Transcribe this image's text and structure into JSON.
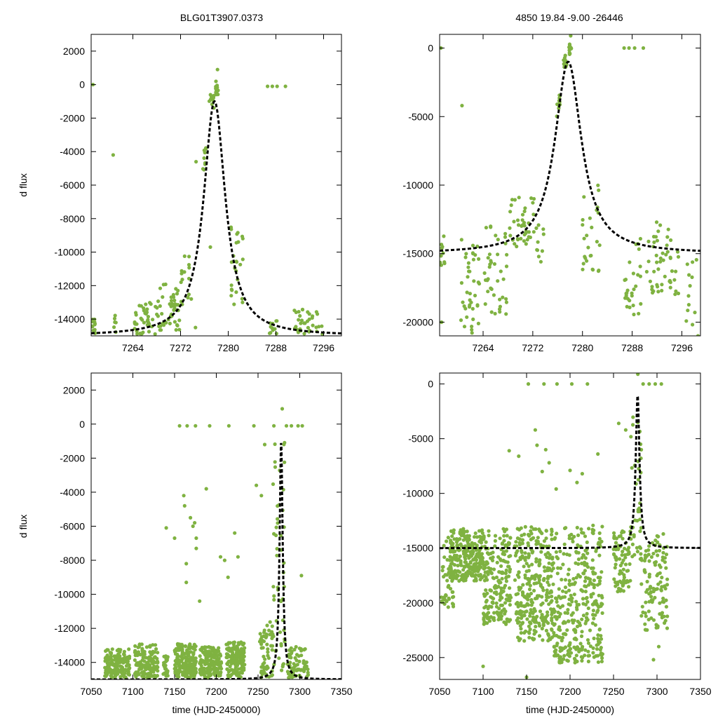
{
  "colors": {
    "points": "#7fb241",
    "model": "#000000",
    "axes": "#000000"
  },
  "header": {
    "left_title": "BLG01T3907.0373",
    "right_title": "4850  19.84  -9.00  -26446"
  },
  "chart_data": [
    {
      "id": "top-left",
      "type": "scatter",
      "xlim": [
        7257,
        7299
      ],
      "ylim": [
        -15000,
        3000
      ],
      "xticks": [
        7264,
        7272,
        7280,
        7288,
        7296
      ],
      "yticks": [
        -14000,
        -12000,
        -10000,
        -8000,
        -6000,
        -4000,
        -2000,
        0,
        2000
      ],
      "ylabel": "d flux",
      "xlabel": "",
      "model": {
        "kind": "lorentzian",
        "t0": 7277.7,
        "width": 2.2,
        "baseline": -15000,
        "peak": -1000
      },
      "points": {
        "clusters": [
          {
            "x0": 7257.0,
            "x1": 7257.8,
            "ymin": -14900,
            "ymax": -13900,
            "n": 12
          },
          {
            "x0": 7260.8,
            "x1": 7261.2,
            "ymin": -14900,
            "ymax": -13400,
            "n": 6
          },
          {
            "x0": 7264.2,
            "x1": 7267.8,
            "ymin": -14900,
            "ymax": -13000,
            "n": 40
          },
          {
            "x0": 7268.0,
            "x1": 7271.8,
            "ymin": -14800,
            "ymax": -11600,
            "n": 50
          },
          {
            "x0": 7272.0,
            "x1": 7273.5,
            "ymin": -13400,
            "ymax": -10200,
            "n": 14
          },
          {
            "x0": 7275.7,
            "x1": 7276.3,
            "ymin": -5200,
            "ymax": -3200,
            "n": 10
          },
          {
            "x0": 7276.8,
            "x1": 7277.6,
            "ymin": -1400,
            "ymax": -600,
            "n": 12
          },
          {
            "x0": 7277.9,
            "x1": 7278.3,
            "ymin": -600,
            "ymax": 200,
            "n": 16
          },
          {
            "x0": 7280.4,
            "x1": 7282.6,
            "ymin": -13200,
            "ymax": -8400,
            "n": 24
          },
          {
            "x0": 7286.8,
            "x1": 7288.2,
            "ymin": -14900,
            "ymax": -13600,
            "n": 12
          },
          {
            "x0": 7291.0,
            "x1": 7295.8,
            "ymin": -14900,
            "ymax": -13000,
            "n": 36
          }
        ],
        "singles": [
          [
            7257.3,
            0
          ],
          [
            7260.7,
            -4200
          ],
          [
            7274.6,
            -4600
          ],
          [
            7278.2,
            900
          ],
          [
            7286.6,
            -100
          ],
          [
            7287.4,
            -100
          ],
          [
            7288.2,
            -100
          ],
          [
            7289.6,
            -100
          ],
          [
            7274.5,
            -14500
          ],
          [
            7273.8,
            -12800
          ],
          [
            7277.0,
            -9700
          ],
          [
            7280.5,
            -12600
          ]
        ]
      }
    },
    {
      "id": "top-right",
      "type": "scatter",
      "xlim": [
        7257,
        7299
      ],
      "ylim": [
        -21000,
        1000
      ],
      "xticks": [
        7264,
        7272,
        7280,
        7288,
        7296
      ],
      "yticks": [
        -20000,
        -15000,
        -10000,
        -5000,
        0
      ],
      "ylabel": "",
      "xlabel": "",
      "model": {
        "kind": "lorentzian",
        "t0": 7277.7,
        "width": 2.6,
        "baseline": -15000,
        "peak": -1000
      },
      "points": {
        "clusters": [
          {
            "x0": 7257.0,
            "x1": 7257.8,
            "ymin": -16000,
            "ymax": -13500,
            "n": 10
          },
          {
            "x0": 7260.4,
            "x1": 7263.8,
            "ymin": -20800,
            "ymax": -13800,
            "n": 40
          },
          {
            "x0": 7264.2,
            "x1": 7267.8,
            "ymin": -19500,
            "ymax": -12500,
            "n": 40
          },
          {
            "x0": 7268.2,
            "x1": 7271.8,
            "ymin": -14500,
            "ymax": -10800,
            "n": 36
          },
          {
            "x0": 7272.0,
            "x1": 7273.8,
            "ymin": -16000,
            "ymax": -9500,
            "n": 14
          },
          {
            "x0": 7275.8,
            "x1": 7276.4,
            "ymin": -5000,
            "ymax": -3000,
            "n": 10
          },
          {
            "x0": 7276.8,
            "x1": 7277.6,
            "ymin": -1400,
            "ymax": -400,
            "n": 12
          },
          {
            "x0": 7277.8,
            "x1": 7278.2,
            "ymin": -500,
            "ymax": 300,
            "n": 14
          },
          {
            "x0": 7280.0,
            "x1": 7282.8,
            "ymin": -16500,
            "ymax": -8500,
            "n": 26
          },
          {
            "x0": 7286.8,
            "x1": 7289.5,
            "ymin": -19500,
            "ymax": -13000,
            "n": 30
          },
          {
            "x0": 7290.0,
            "x1": 7296.0,
            "ymin": -18000,
            "ymax": -12500,
            "n": 50
          },
          {
            "x0": 7296.5,
            "x1": 7298.5,
            "ymin": -20500,
            "ymax": -15000,
            "n": 12
          }
        ],
        "singles": [
          [
            7257.2,
            0
          ],
          [
            7257.3,
            -20000
          ],
          [
            7260.6,
            -4200
          ],
          [
            7278.1,
            900
          ],
          [
            7286.7,
            0
          ],
          [
            7287.5,
            0
          ],
          [
            7288.4,
            0
          ],
          [
            7289.8,
            0
          ],
          [
            7298.6,
            -21000
          ]
        ]
      }
    },
    {
      "id": "bottom-left",
      "type": "scatter",
      "xlim": [
        7050,
        7350
      ],
      "ylim": [
        -15000,
        3000
      ],
      "xticks": [
        7050,
        7100,
        7150,
        7200,
        7250,
        7300,
        7350
      ],
      "yticks": [
        -14000,
        -12000,
        -10000,
        -8000,
        -6000,
        -4000,
        -2000,
        0,
        2000
      ],
      "ylabel": "d flux",
      "xlabel": "time (HJD-2450000)",
      "model": {
        "kind": "lorentzian",
        "t0": 7277.7,
        "width": 2.2,
        "baseline": -15000,
        "peak": -1000
      },
      "points": {
        "clusters": [
          {
            "x0": 7066,
            "x1": 7096,
            "ymin": -14900,
            "ymax": -13100,
            "n": 160
          },
          {
            "x0": 7102,
            "x1": 7130,
            "ymin": -14900,
            "ymax": -12900,
            "n": 150
          },
          {
            "x0": 7136,
            "x1": 7142,
            "ymin": -14800,
            "ymax": -13500,
            "n": 30
          },
          {
            "x0": 7150,
            "x1": 7176,
            "ymin": -14900,
            "ymax": -12900,
            "n": 200
          },
          {
            "x0": 7180,
            "x1": 7206,
            "ymin": -14900,
            "ymax": -13000,
            "n": 160
          },
          {
            "x0": 7212,
            "x1": 7234,
            "ymin": -14900,
            "ymax": -12800,
            "n": 150
          },
          {
            "x0": 7252,
            "x1": 7268,
            "ymin": -14900,
            "ymax": -11500,
            "n": 60
          },
          {
            "x0": 7268,
            "x1": 7282,
            "ymin": -14900,
            "ymax": -1000,
            "n": 50
          },
          {
            "x0": 7285,
            "x1": 7310,
            "ymin": -14900,
            "ymax": -13000,
            "n": 70
          }
        ],
        "singles": [
          [
            7156,
            -100
          ],
          [
            7165,
            -100
          ],
          [
            7175,
            -100
          ],
          [
            7192,
            -100
          ],
          [
            7215,
            -100
          ],
          [
            7245,
            -100
          ],
          [
            7269,
            -100
          ],
          [
            7279,
            900
          ],
          [
            7284,
            -100
          ],
          [
            7290,
            -100
          ],
          [
            7298,
            -100
          ],
          [
            7303,
            -100
          ],
          [
            7140,
            -6100
          ],
          [
            7150,
            -6700
          ],
          [
            7161,
            -4200
          ],
          [
            7162,
            -4800
          ],
          [
            7164,
            -8200
          ],
          [
            7164,
            -9300
          ],
          [
            7169,
            -5500
          ],
          [
            7172,
            -6000
          ],
          [
            7174,
            -5800
          ],
          [
            7176,
            -6700
          ],
          [
            7176,
            -7300
          ],
          [
            7180,
            -10400
          ],
          [
            7188,
            -3800
          ],
          [
            7205,
            -7800
          ],
          [
            7210,
            -8000
          ],
          [
            7214,
            -9000
          ],
          [
            7222,
            -6400
          ],
          [
            7226,
            -7800
          ],
          [
            7248,
            -3600
          ],
          [
            7254,
            -4200
          ],
          [
            7258,
            -1200
          ],
          [
            7302,
            -8900
          ]
        ]
      }
    },
    {
      "id": "bottom-right",
      "type": "scatter",
      "xlim": [
        7050,
        7350
      ],
      "ylim": [
        -27000,
        1000
      ],
      "xticks": [
        7050,
        7100,
        7150,
        7200,
        7250,
        7300,
        7350
      ],
      "yticks": [
        -25000,
        -20000,
        -15000,
        -10000,
        -5000,
        0
      ],
      "ylabel": "",
      "xlabel": "time (HJD-2450000)",
      "model": {
        "kind": "lorentzian",
        "t0": 7277.7,
        "width": 2.6,
        "baseline": -15000,
        "peak": -1000
      },
      "points": {
        "clusters": [
          {
            "x0": 7052,
            "x1": 7066,
            "ymin": -20500,
            "ymax": -14000,
            "n": 50
          },
          {
            "x0": 7062,
            "x1": 7100,
            "ymin": -18000,
            "ymax": -13200,
            "n": 230
          },
          {
            "x0": 7100,
            "x1": 7132,
            "ymin": -22000,
            "ymax": -13000,
            "n": 200
          },
          {
            "x0": 7136,
            "x1": 7180,
            "ymin": -23500,
            "ymax": -13000,
            "n": 300
          },
          {
            "x0": 7180,
            "x1": 7238,
            "ymin": -25500,
            "ymax": -12800,
            "n": 340
          },
          {
            "x0": 7250,
            "x1": 7270,
            "ymin": -19000,
            "ymax": -13300,
            "n": 80
          },
          {
            "x0": 7270,
            "x1": 7282,
            "ymin": -16000,
            "ymax": -3000,
            "n": 40
          },
          {
            "x0": 7282,
            "x1": 7312,
            "ymin": -22500,
            "ymax": -13500,
            "n": 110
          }
        ],
        "singles": [
          [
            7152,
            0
          ],
          [
            7170,
            0
          ],
          [
            7185,
            0
          ],
          [
            7202,
            0
          ],
          [
            7220,
            0
          ],
          [
            7278,
            900
          ],
          [
            7284,
            0
          ],
          [
            7291,
            0
          ],
          [
            7298,
            0
          ],
          [
            7305,
            0
          ],
          [
            7130,
            -6100
          ],
          [
            7141,
            -6600
          ],
          [
            7160,
            -4200
          ],
          [
            7162,
            -5600
          ],
          [
            7168,
            -8000
          ],
          [
            7172,
            -6000
          ],
          [
            7176,
            -7200
          ],
          [
            7184,
            -9600
          ],
          [
            7200,
            -7900
          ],
          [
            7208,
            -9000
          ],
          [
            7214,
            -8200
          ],
          [
            7232,
            -6400
          ],
          [
            7256,
            -3600
          ],
          [
            7264,
            -4200
          ],
          [
            7100,
            -25800
          ],
          [
            7150,
            -26800
          ],
          [
            7302,
            -24000
          ],
          [
            7296,
            -25200
          ]
        ]
      }
    }
  ]
}
